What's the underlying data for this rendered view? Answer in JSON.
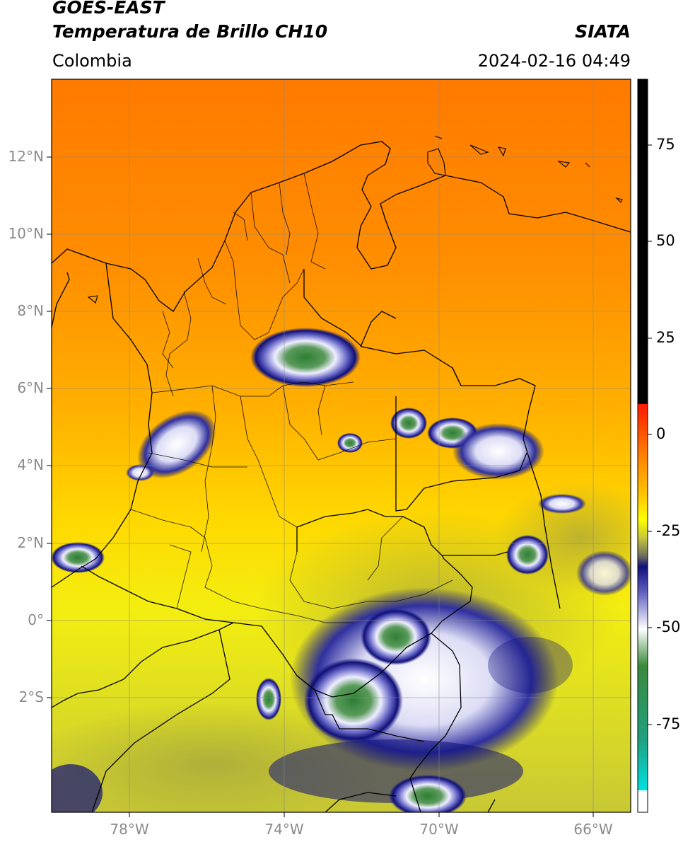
{
  "header": {
    "satellite": "GOES-EAST",
    "product": "Temperatura de Brillo CH10",
    "region": "Colombia",
    "agency": "SIATA",
    "datetime": "2024-02-16 04:49"
  },
  "axes": {
    "lat_labels": [
      "12°N",
      "10°N",
      "8°N",
      "6°N",
      "4°N",
      "2°N",
      "0°",
      "2°S"
    ],
    "lon_labels": [
      "78°W",
      "74°W",
      "70°W",
      "66°W"
    ]
  },
  "colorbar": {
    "tick_labels": [
      "75",
      "50",
      "25",
      "0",
      "-25",
      "-50",
      "-75"
    ],
    "colors": [
      "#000000",
      "#ff2200",
      "#ff8a00",
      "#ffff00",
      "#c8c838",
      "#10107a",
      "#ffffff",
      "#2f7d2f",
      "#00e0e0"
    ]
  }
}
